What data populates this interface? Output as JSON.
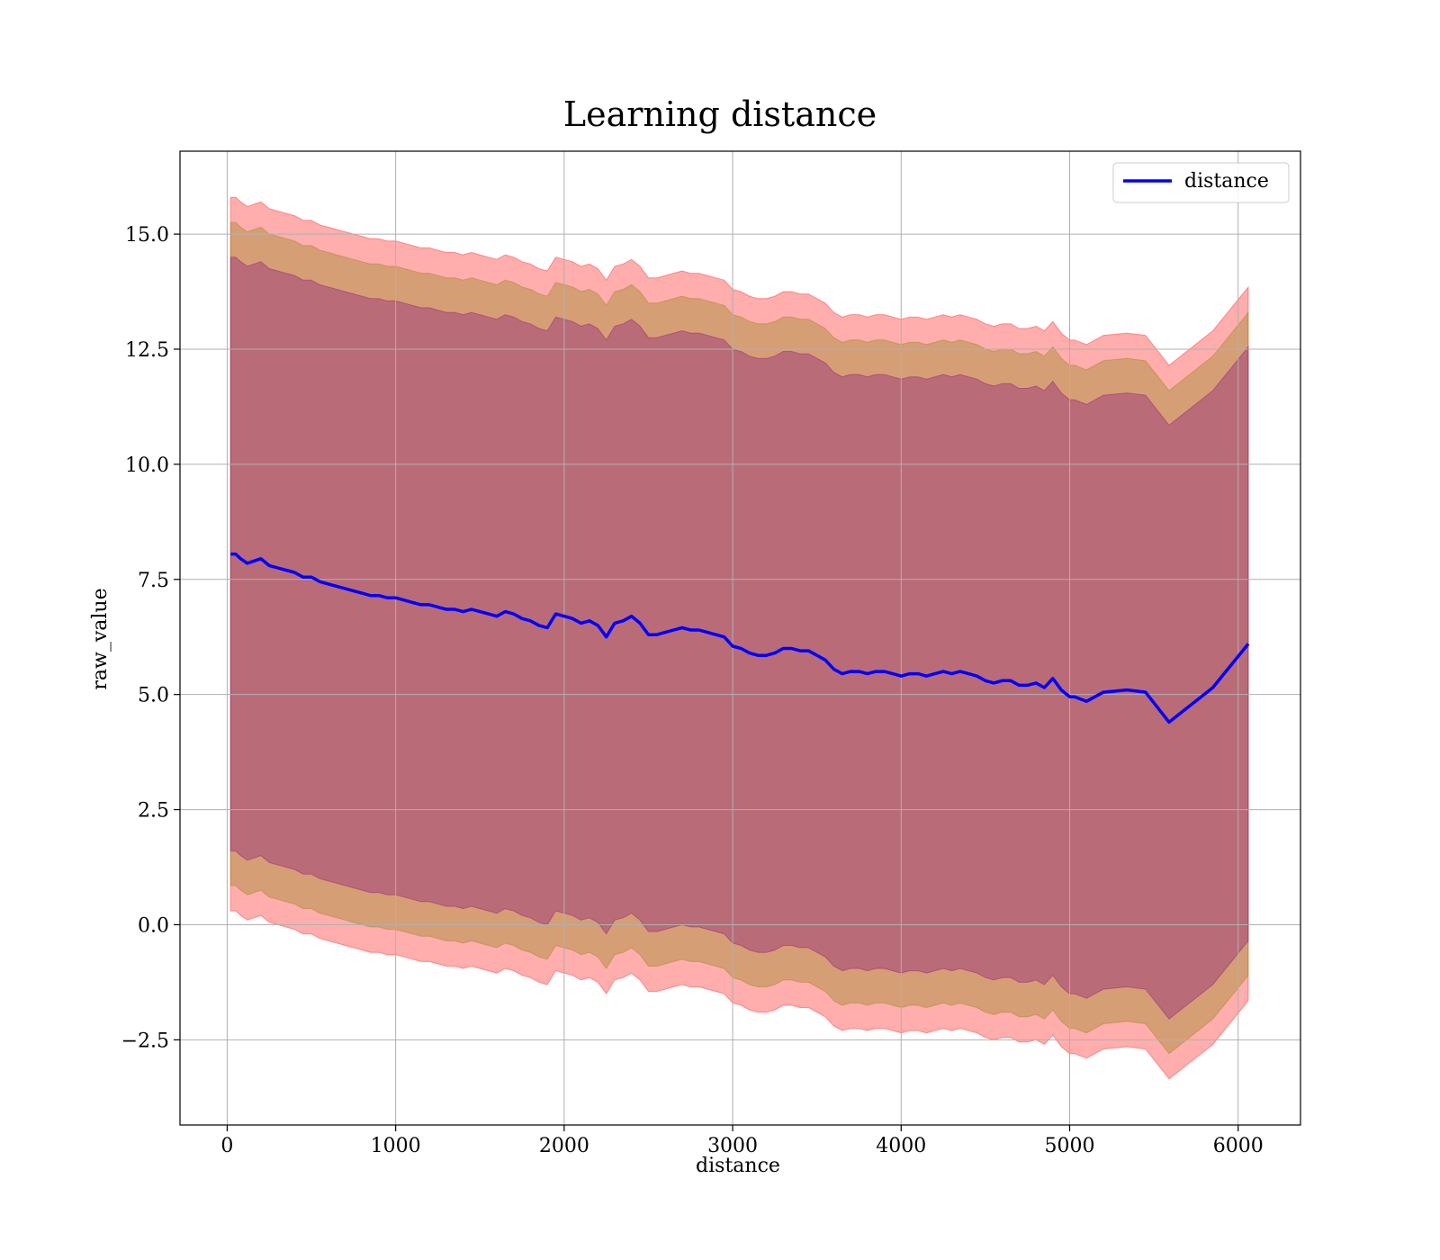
{
  "chart_data": {
    "type": "line",
    "title": "Learning distance",
    "xlabel": "distance",
    "ylabel": "raw_value",
    "xlim": [
      -280,
      6370
    ],
    "ylim": [
      -4.35,
      16.8
    ],
    "xticks": [
      0,
      1000,
      2000,
      3000,
      4000,
      5000,
      6000
    ],
    "xtick_labels": [
      "0",
      "1000",
      "2000",
      "3000",
      "4000",
      "5000",
      "6000"
    ],
    "yticks": [
      -2.5,
      0.0,
      2.5,
      5.0,
      7.5,
      10.0,
      12.5,
      15.0
    ],
    "ytick_labels": [
      "−2.5",
      "0.0",
      "2.5",
      "5.0",
      "7.5",
      "10.0",
      "12.5",
      "15.0"
    ],
    "grid": true,
    "legend_position": "top-right",
    "colors": {
      "line": "#0000ff",
      "band_outer": "#ff0000",
      "band_middle": "#808000",
      "band_inner": "#800080",
      "grid": "#b0b0b0"
    },
    "series": [
      {
        "name": "distance",
        "x": [
          20,
          50,
          80,
          120,
          160,
          200,
          250,
          300,
          350,
          400,
          450,
          500,
          550,
          600,
          650,
          700,
          750,
          800,
          850,
          900,
          950,
          1000,
          1050,
          1100,
          1150,
          1200,
          1250,
          1300,
          1350,
          1400,
          1450,
          1500,
          1550,
          1600,
          1650,
          1700,
          1750,
          1800,
          1850,
          1900,
          1950,
          2000,
          2050,
          2100,
          2150,
          2200,
          2250,
          2300,
          2350,
          2400,
          2450,
          2500,
          2550,
          2600,
          2650,
          2700,
          2750,
          2800,
          2850,
          2900,
          2950,
          3000,
          3050,
          3100,
          3150,
          3200,
          3250,
          3300,
          3350,
          3400,
          3450,
          3500,
          3550,
          3600,
          3650,
          3700,
          3750,
          3800,
          3850,
          3900,
          3950,
          4000,
          4050,
          4100,
          4150,
          4200,
          4250,
          4300,
          4350,
          4400,
          4450,
          4500,
          4550,
          4600,
          4650,
          4700,
          4750,
          4800,
          4850,
          4900,
          4950,
          5000,
          5030,
          5100,
          5200,
          5340,
          5450,
          5590,
          5850,
          6060
        ],
        "values": [
          8.05,
          8.05,
          7.95,
          7.85,
          7.9,
          7.95,
          7.8,
          7.75,
          7.7,
          7.65,
          7.55,
          7.55,
          7.45,
          7.4,
          7.35,
          7.3,
          7.25,
          7.2,
          7.15,
          7.15,
          7.1,
          7.1,
          7.05,
          7.0,
          6.95,
          6.95,
          6.9,
          6.85,
          6.85,
          6.8,
          6.85,
          6.8,
          6.75,
          6.7,
          6.8,
          6.75,
          6.65,
          6.6,
          6.5,
          6.45,
          6.75,
          6.7,
          6.65,
          6.55,
          6.6,
          6.5,
          6.25,
          6.55,
          6.6,
          6.7,
          6.55,
          6.3,
          6.3,
          6.35,
          6.4,
          6.45,
          6.4,
          6.4,
          6.35,
          6.3,
          6.25,
          6.05,
          6.0,
          5.9,
          5.85,
          5.85,
          5.9,
          6.0,
          6.0,
          5.95,
          5.95,
          5.85,
          5.75,
          5.55,
          5.45,
          5.5,
          5.5,
          5.45,
          5.5,
          5.5,
          5.45,
          5.4,
          5.45,
          5.45,
          5.4,
          5.45,
          5.5,
          5.45,
          5.5,
          5.45,
          5.4,
          5.3,
          5.25,
          5.3,
          5.3,
          5.2,
          5.2,
          5.25,
          5.15,
          5.35,
          5.1,
          4.95,
          4.95,
          4.85,
          5.05,
          5.1,
          5.05,
          4.4,
          5.15,
          6.1
        ]
      }
    ],
    "bands": [
      {
        "color": "#ff0000",
        "opacity": 0.32,
        "upper_half_width": 7.75,
        "lower_half_width": 7.75
      },
      {
        "color": "#808000",
        "opacity": 0.32,
        "upper_half_width": 7.2,
        "lower_half_width": 7.2
      },
      {
        "color": "#800080",
        "opacity": 0.32,
        "upper_half_width": 6.45,
        "lower_half_width": 6.45
      }
    ]
  }
}
